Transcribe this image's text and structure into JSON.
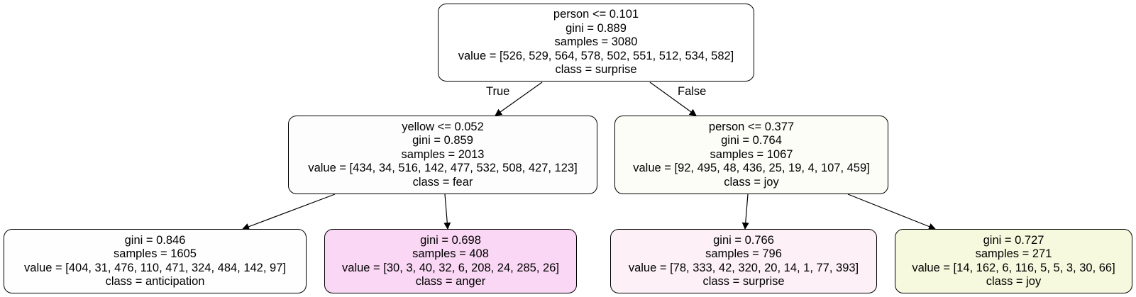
{
  "tree": {
    "nodes": [
      {
        "id": "n0",
        "split": "person <= 0.101",
        "gini": "gini = 0.889",
        "samples": "samples = 3080",
        "value": "value = [526, 529, 564, 578, 502, 551, 512, 534, 582]",
        "class": "class = surprise",
        "fill": "#ffffff"
      },
      {
        "id": "n1",
        "split": "yellow <= 0.052",
        "gini": "gini = 0.859",
        "samples": "samples = 2013",
        "value": "value = [434, 34, 516, 142, 477, 532, 508, 427, 123]",
        "class": "class = fear",
        "fill": "#fdfdfd"
      },
      {
        "id": "n2",
        "split": "person <= 0.377",
        "gini": "gini = 0.764",
        "samples": "samples = 1067",
        "value": "value = [92, 495, 48, 436, 25, 19, 4, 107, 459]",
        "class": "class = joy",
        "fill": "#fcfdf7"
      },
      {
        "id": "n3",
        "gini": "gini = 0.846",
        "samples": "samples = 1605",
        "value": "value = [404, 31, 476, 110, 471, 324, 484, 142, 97]",
        "class": "class = anticipation",
        "fill": "#fefefe"
      },
      {
        "id": "n4",
        "gini": "gini = 0.698",
        "samples": "samples = 408",
        "value": "value = [30, 3, 40, 32, 6, 208, 24, 285, 26]",
        "class": "class = anger",
        "fill": "#fad7f4"
      },
      {
        "id": "n5",
        "gini": "gini = 0.766",
        "samples": "samples = 796",
        "value": "value = [78, 333, 42, 320, 20, 14, 1, 77, 393]",
        "class": "class = surprise",
        "fill": "#fdf0f6"
      },
      {
        "id": "n6",
        "gini": "gini = 0.727",
        "samples": "samples = 271",
        "value": "value = [14, 162, 6, 116, 5, 5, 3, 30, 66]",
        "class": "class = joy",
        "fill": "#f6f9dd"
      }
    ],
    "edges": [
      {
        "from": "n0",
        "to": "n1",
        "label": "True"
      },
      {
        "from": "n0",
        "to": "n2",
        "label": "False"
      },
      {
        "from": "n1",
        "to": "n3"
      },
      {
        "from": "n1",
        "to": "n4"
      },
      {
        "from": "n2",
        "to": "n5"
      },
      {
        "from": "n2",
        "to": "n6"
      }
    ]
  }
}
